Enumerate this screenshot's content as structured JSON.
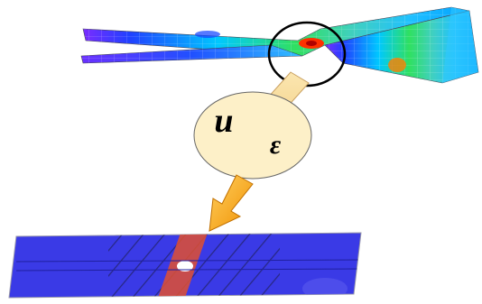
{
  "bubble": {
    "labels": [
      "u",
      "ε"
    ]
  }
}
